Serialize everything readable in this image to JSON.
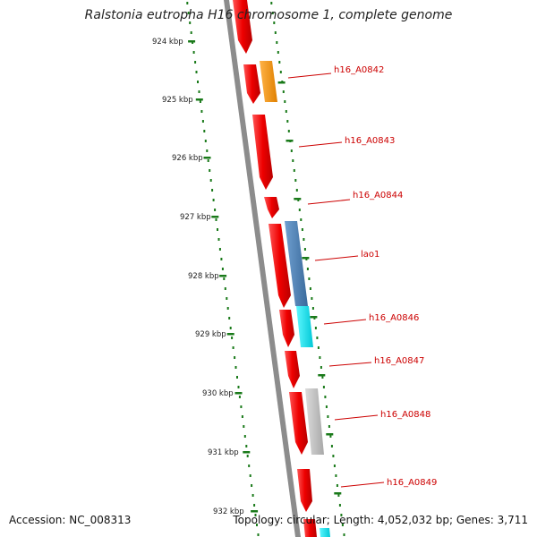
{
  "title": "Ralstonia eutropha H16 chromosome 1, complete genome",
  "footer": {
    "accession": "Accession: NC_008313",
    "summary": "Topology: circular; Length: 4,052,032 bp; Genes: 3,711"
  },
  "colors": {
    "backbone": "#8c8c8c",
    "tick": "#1a7a1a",
    "forward_gene": "#ee1111",
    "label": "#cc0000"
  },
  "scale_ticks": [
    "924 kbp",
    "925 kbp",
    "926 kbp",
    "927 kbp",
    "928 kbp",
    "929 kbp",
    "930 kbp",
    "931 kbp",
    "932 kbp"
  ],
  "gene_labels": [
    "h16_A0842",
    "h16_A0843",
    "h16_A0844",
    "lao1",
    "h16_A0846",
    "h16_A0847",
    "h16_A0848",
    "h16_A0849"
  ],
  "features": [
    {
      "name": "h16_A0842",
      "color": "#ff9900",
      "lane": "outer"
    },
    {
      "name": "lao1",
      "color": "#4a7fb5",
      "lane": "outer"
    },
    {
      "name": "h16_A0846",
      "color": "#00e5ee",
      "lane": "outer"
    },
    {
      "name": "h16_A0848",
      "color": "#bdbdbd",
      "lane": "outer"
    }
  ]
}
